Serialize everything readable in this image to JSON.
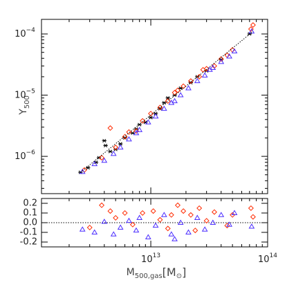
{
  "chart_data": [
    {
      "type": "scatter",
      "log_x": true,
      "log_y": true,
      "y_label": {
        "text": "Y",
        "sub": "500"
      },
      "xlim": [
        1160000000000.0,
        100000000000000.0
      ],
      "ylim": [
        2.46e-07,
        0.000173
      ],
      "yticks": [
        {
          "value": 0.0001,
          "label": "10",
          "exponent": "−4"
        },
        {
          "value": 1e-05,
          "label": "10",
          "exponent": "−5"
        },
        {
          "value": 1e-06,
          "label": "10",
          "exponent": "−6"
        }
      ],
      "series": [
        {
          "marker": "asterisk",
          "color": "#000000",
          "x": [
            2500000000000.0,
            2900000000000.0,
            3400000000000.0,
            3600000000000.0,
            4000000000000.0,
            4100000000000.0,
            4500000000000.0,
            5000000000000.0,
            5500000000000.0,
            6000000000000.0,
            7000000000000.0,
            7500000000000.0,
            8000000000000.0,
            9000000000000.0,
            10000000000000.0,
            11000000000000.0,
            12000000000000.0,
            13000000000000.0,
            14000000000000.0,
            16000000000000.0,
            18000000000000.0,
            22000000000000.0,
            25000000000000.0,
            30000000000000.0,
            40000000000000.0,
            70000000000000.0
          ],
          "values": [
            5.5e-07,
            6.5e-07,
            8e-07,
            9.5e-07,
            1.8e-06,
            1.5e-06,
            1.2e-06,
            1.3e-06,
            1.6e-06,
            2e-06,
            2.4e-06,
            2.8e-06,
            3.3e-06,
            3.6e-06,
            4.3e-06,
            5e-06,
            6e-06,
            7.5e-06,
            9e-06,
            1e-05,
            1.3e-05,
            1.6e-05,
            2e-05,
            2.5e-05,
            3.8e-05,
            0.0001
          ]
        },
        {
          "marker": "diamond",
          "color": "#ff2a00",
          "x": [
            2700000000000.0,
            3800000000000.0,
            4500000000000.0,
            5000000000000.0,
            6000000000000.0,
            6500000000000.0,
            7500000000000.0,
            8500000000000.0,
            10000000000000.0,
            12000000000000.0,
            14000000000000.0,
            16000000000000.0,
            17000000000000.0,
            19000000000000.0,
            22000000000000.0,
            26000000000000.0,
            28000000000000.0,
            30000000000000.0,
            35000000000000.0,
            40000000000000.0,
            45000000000000.0,
            50000000000000.0,
            72000000000000.0,
            75000000000000.0
          ],
          "values": [
            6e-07,
            9.5e-07,
            2.9e-06,
            1.4e-06,
            2.1e-06,
            2.5e-06,
            2.6e-06,
            3.8e-06,
            5e-06,
            6.3e-06,
            8e-06,
            1.1e-05,
            1.2e-05,
            1.4e-05,
            1.7e-05,
            2e-05,
            2.6e-05,
            2.7e-05,
            3e-05,
            3.9e-05,
            4.5e-05,
            5.5e-05,
            0.00012,
            0.00014
          ]
        },
        {
          "marker": "triangle",
          "color": "#4a2cff",
          "x": [
            2600000000000.0,
            3300000000000.0,
            4000000000000.0,
            4800000000000.0,
            5500000000000.0,
            6500000000000.0,
            7500000000000.0,
            8000000000000.0,
            9500000000000.0,
            11000000000000.0,
            13000000000000.0,
            15000000000000.0,
            16000000000000.0,
            18000000000000.0,
            21000000000000.0,
            25000000000000.0,
            29000000000000.0,
            32000000000000.0,
            34000000000000.0,
            40000000000000.0,
            47000000000000.0,
            52000000000000.0,
            73000000000000.0
          ],
          "values": [
            5.6e-07,
            7.5e-07,
            8.5e-07,
            1.1e-06,
            1.4e-06,
            1.9e-06,
            2.4e-06,
            2.7e-06,
            3.6e-06,
            4.5e-06,
            6e-06,
            7.5e-06,
            8e-06,
            1e-05,
            1.3e-05,
            1.7e-05,
            2.1e-05,
            2.6e-05,
            2.8e-05,
            3.5e-05,
            4.3e-05,
            5.2e-05,
            0.00011
          ]
        },
        {
          "marker": "dotted-line",
          "color": "#000000",
          "x": [
            2500000000000.0,
            75000000000000.0
          ],
          "values": [
            5.46e-07,
            0.00011
          ]
        }
      ]
    },
    {
      "type": "scatter",
      "log_x": true,
      "x_label": {
        "text": "M",
        "sub": "500,gas",
        "unit_open": "[M",
        "unit_sym": "⊙",
        "unit_close": "]"
      },
      "xlim": [
        1160000000000.0,
        100000000000000.0
      ],
      "ylim": [
        -0.25,
        0.25
      ],
      "xticks": [
        {
          "value": 10000000000000.0,
          "label": "10",
          "exponent": "13"
        },
        {
          "value": 100000000000000.0,
          "label": "10",
          "exponent": "14"
        }
      ],
      "yticks": [
        0.2,
        0.1,
        {
          "value": 0,
          "label": "0.0"
        },
        -0.1,
        -0.2
      ],
      "reference": 0,
      "series": [
        {
          "marker": "diamond",
          "color": "#ff2a00",
          "x": [
            3000000000000.0,
            3800000000000.0,
            4500000000000.0,
            5000000000000.0,
            6000000000000.0,
            7000000000000.0,
            8500000000000.0,
            10500000000000.0,
            12000000000000.0,
            14000000000000.0,
            15000000000000.0,
            17000000000000.0,
            19000000000000.0,
            22000000000000.0,
            24000000000000.0,
            26000000000000.0,
            30000000000000.0,
            35000000000000.0,
            45000000000000.0,
            50000000000000.0,
            72000000000000.0,
            75000000000000.0
          ],
          "values": [
            -0.05,
            0.18,
            0.12,
            0.05,
            0.1,
            -0.02,
            0.1,
            0.12,
            0.03,
            -0.06,
            0.08,
            0.18,
            0.12,
            0.08,
            -0.08,
            0.15,
            0.02,
            0.11,
            -0.03,
            0.08,
            0.15,
            0.06
          ]
        },
        {
          "marker": "triangle",
          "color": "#4a2cff",
          "x": [
            2600000000000.0,
            3300000000000.0,
            4000000000000.0,
            4800000000000.0,
            5500000000000.0,
            6500000000000.0,
            7500000000000.0,
            8000000000000.0,
            9500000000000.0,
            11000000000000.0,
            13000000000000.0,
            15000000000000.0,
            16000000000000.0,
            18000000000000.0,
            21000000000000.0,
            25000000000000.0,
            29000000000000.0,
            34000000000000.0,
            40000000000000.0,
            47000000000000.0,
            52000000000000.0,
            73000000000000.0
          ],
          "values": [
            -0.07,
            -0.1,
            0.01,
            -0.12,
            -0.05,
            0.02,
            -0.08,
            0.05,
            -0.15,
            -0.03,
            0.08,
            -0.12,
            -0.17,
            0,
            -0.1,
            0.05,
            -0.07,
            0,
            0.08,
            -0.02,
            0.1,
            -0.04
          ]
        }
      ]
    }
  ]
}
